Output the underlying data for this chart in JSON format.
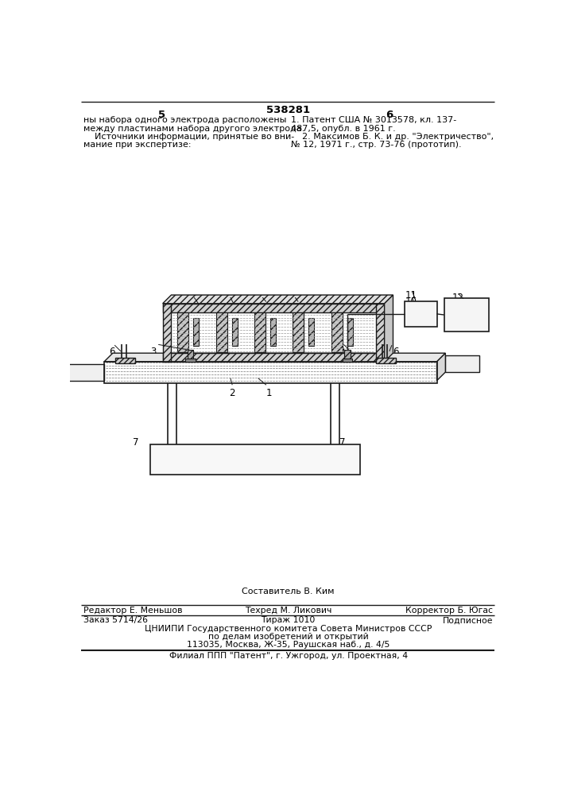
{
  "page_number_center": "538281",
  "page_col_left": "5",
  "page_col_right": "6",
  "top_text_left": [
    "ны набора одного электрода расположены",
    "между пластинами набора другого электрода.",
    "    Источники информации, принятые во вни-",
    "мание при экспертизе:"
  ],
  "top_text_right": [
    "1. Патент США № 3013578, кл. 137-",
    "487,5, опубл. в 1961 г.",
    "    2. Максимов Б. К. и др. \"Электричество\",",
    "№ 12, 1971 г., стр. 73-76 (прототип)."
  ],
  "bottom_block": {
    "line1_center": "Составитель В. Ким",
    "line2_left": "Редактор Е. Меньшов",
    "line2_center": "Техред М. Ликович",
    "line2_right": "Корректор Б. Югас",
    "line3_left": "Заказ 5714/26",
    "line3_center": "Тираж 1010",
    "line3_right": "Подписное",
    "line4": "ЦНИИПИ Государственного комитета Совета Министров СССР",
    "line5": "по делам изобретений и открытий",
    "line6": "113035, Москва, Ж-35, Раушская наб., д. 4/5",
    "line7": "Филиал ППП \"Патент\", г. Ужгород, ул. Проектная, 4"
  },
  "bg_color": "#ffffff",
  "line_color": "#1a1a1a"
}
